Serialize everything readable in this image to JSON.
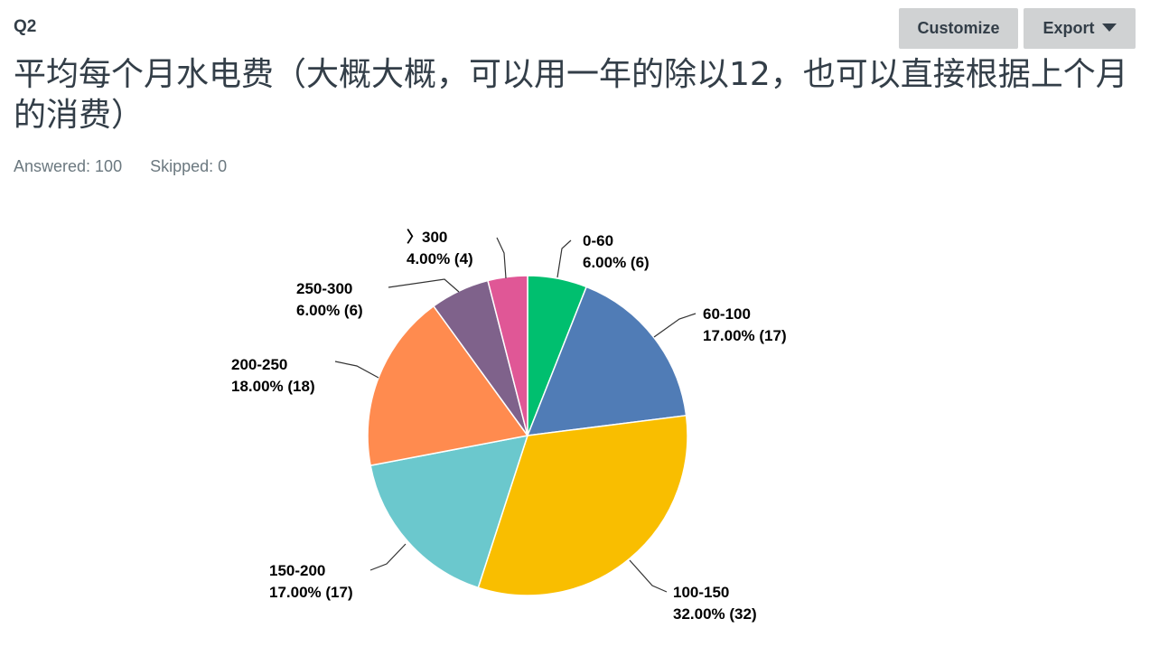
{
  "question": {
    "number": "Q2",
    "title": "平均每个月水电费（大概大概，可以用一年的除以12，也可以直接根据上个月的消费）",
    "answered_label": "Answered: 100",
    "skipped_label": "Skipped: 0"
  },
  "toolbar": {
    "customize_label": "Customize",
    "export_label": "Export"
  },
  "chart_data": {
    "type": "pie",
    "title": "",
    "slices": [
      {
        "label": "0-60",
        "percent_label": "6.00% (6)",
        "value": 6,
        "color": "#00bf6f"
      },
      {
        "label": "60-100",
        "percent_label": "17.00% (17)",
        "value": 17,
        "color": "#507cb6"
      },
      {
        "label": "100-150",
        "percent_label": "32.00% (32)",
        "value": 32,
        "color": "#f9be00"
      },
      {
        "label": "150-200",
        "percent_label": "17.00% (17)",
        "value": 17,
        "color": "#6bc8cd"
      },
      {
        "label": "200-250",
        "percent_label": "18.00% (18)",
        "value": 18,
        "color": "#ff8b4f"
      },
      {
        "label": "250-300",
        "percent_label": "6.00% (6)",
        "value": 6,
        "color": "#7f628b"
      },
      {
        "label": "〉300",
        "percent_label": "4.00% (4)",
        "value": 4,
        "color": "#e05796"
      }
    ]
  }
}
